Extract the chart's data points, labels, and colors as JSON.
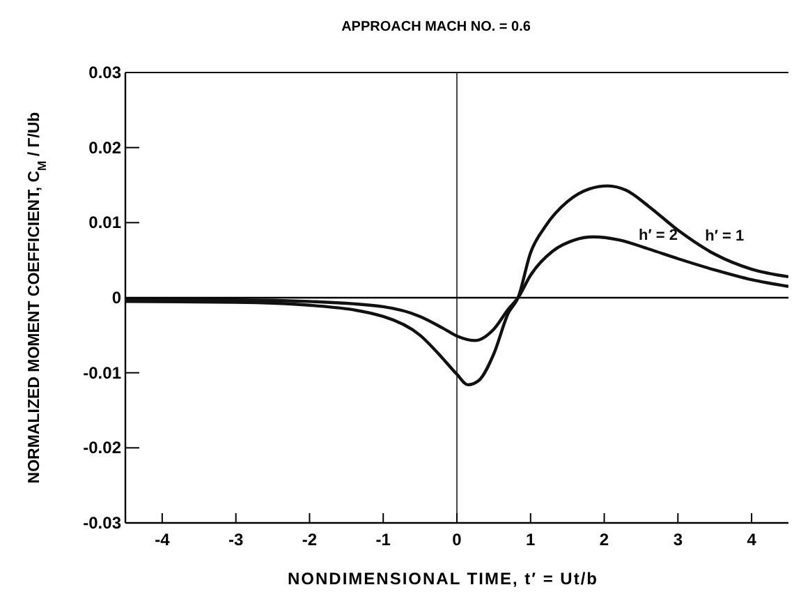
{
  "chart_data": {
    "type": "line",
    "title": "APPROACH MACH NO. = 0.6",
    "xlabel": "NONDIMENSIONAL TIME,  t′ = Ut/b",
    "ylabel": "NORMALIZED MOMENT COEFFICIENT,  C$_{M}$ / Γ/Ub",
    "xlim": [
      -4.5,
      4.5
    ],
    "xticks": [
      -4,
      -3,
      -2,
      -1,
      0,
      1,
      2,
      3,
      4
    ],
    "ylim": [
      -0.03,
      0.03
    ],
    "yticks": [
      -0.03,
      -0.02,
      -0.01,
      0,
      0.01,
      0.02,
      0.03
    ],
    "grid": false,
    "marker": "none",
    "line_style": "solid",
    "ref_lines": [
      {
        "axis": "x",
        "value": 0,
        "color": "#333333"
      },
      {
        "axis": "y",
        "value": 0,
        "color": "#000000"
      }
    ],
    "series": [
      {
        "name": "h′ = 1",
        "color": "#111111",
        "x": [
          -4.5,
          -3,
          -2,
          -1,
          -0.5,
          -0.2,
          0,
          0.15,
          0.3,
          0.5,
          0.7,
          0.83,
          1.0,
          1.2,
          1.5,
          1.8,
          2.05,
          2.3,
          2.6,
          3.0,
          3.5,
          4.0,
          4.5
        ],
        "values": [
          -0.0005,
          -0.0006,
          -0.001,
          -0.0025,
          -0.005,
          -0.008,
          -0.0102,
          -0.0116,
          -0.011,
          -0.0075,
          -0.002,
          0,
          0.006,
          0.0095,
          0.0128,
          0.0145,
          0.0149,
          0.0143,
          0.0122,
          0.009,
          0.0058,
          0.0038,
          0.0028
        ]
      },
      {
        "name": "h′ = 2",
        "color": "#111111",
        "x": [
          -4.5,
          -3,
          -2,
          -1,
          -0.5,
          -0.2,
          0,
          0.25,
          0.5,
          0.7,
          0.83,
          1.0,
          1.3,
          1.6,
          1.85,
          2.2,
          2.6,
          3.0,
          3.5,
          4.0,
          4.5
        ],
        "values": [
          -0.0003,
          -0.0003,
          -0.0005,
          -0.0012,
          -0.0025,
          -0.004,
          -0.0051,
          -0.0057,
          -0.0042,
          -0.0015,
          0,
          0.003,
          0.0062,
          0.0077,
          0.0081,
          0.0077,
          0.0065,
          0.0052,
          0.0037,
          0.0024,
          0.0015
        ]
      }
    ]
  }
}
